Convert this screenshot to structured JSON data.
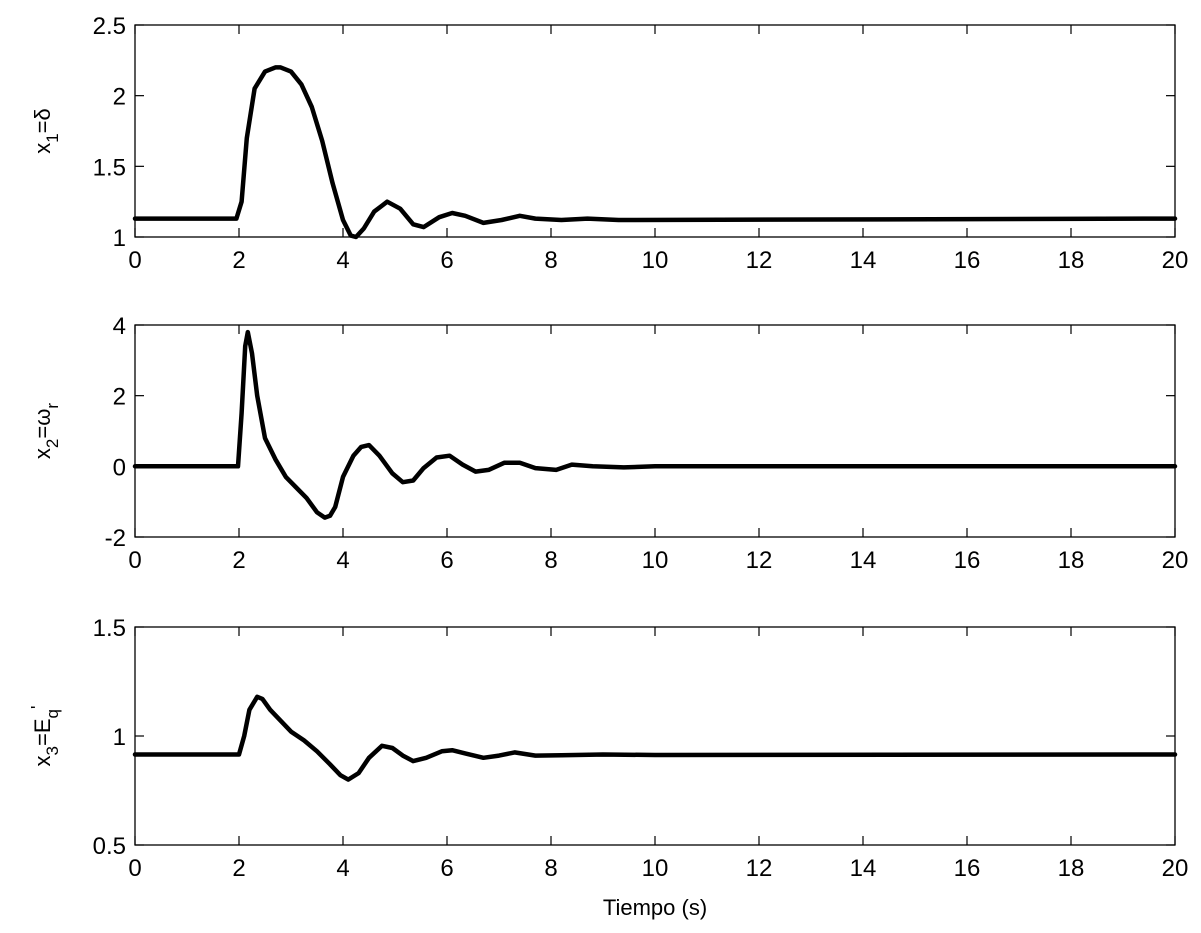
{
  "chart_data": [
    {
      "type": "line",
      "ylabel_parts": [
        "x",
        "1",
        "=δ"
      ],
      "xlabel": "",
      "xlim": [
        0,
        20
      ],
      "ylim": [
        1,
        2.5
      ],
      "xticks": [
        "0",
        "2",
        "4",
        "6",
        "8",
        "10",
        "12",
        "14",
        "16",
        "18",
        "20"
      ],
      "yticks": [
        "1",
        "1.5",
        "2",
        "2.5"
      ],
      "series": [
        {
          "x": [
            0,
            1.95,
            2.05,
            2.15,
            2.3,
            2.5,
            2.7,
            2.8,
            3.0,
            3.2,
            3.4,
            3.6,
            3.8,
            4.0,
            4.15,
            4.25,
            4.4,
            4.6,
            4.85,
            5.1,
            5.35,
            5.55,
            5.85,
            6.1,
            6.35,
            6.7,
            7.05,
            7.4,
            7.7,
            8.2,
            8.7,
            9.3,
            20
          ],
          "y": [
            1.13,
            1.13,
            1.25,
            1.7,
            2.05,
            2.17,
            2.2,
            2.2,
            2.17,
            2.08,
            1.92,
            1.68,
            1.38,
            1.12,
            1.01,
            1.0,
            1.06,
            1.18,
            1.25,
            1.2,
            1.09,
            1.07,
            1.14,
            1.17,
            1.15,
            1.1,
            1.12,
            1.15,
            1.13,
            1.12,
            1.13,
            1.12,
            1.13
          ]
        }
      ]
    },
    {
      "type": "line",
      "ylabel_parts": [
        "x",
        "2",
        "=ω",
        "r"
      ],
      "xlabel": "",
      "xlim": [
        0,
        20
      ],
      "ylim": [
        -2,
        4
      ],
      "xticks": [
        "0",
        "2",
        "4",
        "6",
        "8",
        "10",
        "12",
        "14",
        "16",
        "18",
        "20"
      ],
      "yticks": [
        "-2",
        "0",
        "2",
        "4"
      ],
      "series": [
        {
          "x": [
            0,
            1.98,
            2.05,
            2.12,
            2.17,
            2.25,
            2.35,
            2.5,
            2.7,
            2.9,
            3.1,
            3.3,
            3.5,
            3.65,
            3.75,
            3.85,
            4.0,
            4.2,
            4.35,
            4.5,
            4.7,
            4.95,
            5.15,
            5.35,
            5.55,
            5.8,
            6.05,
            6.3,
            6.55,
            6.8,
            7.1,
            7.4,
            7.7,
            8.1,
            8.4,
            8.8,
            9.4,
            10.0,
            20
          ],
          "y": [
            0,
            0,
            1.5,
            3.4,
            3.8,
            3.2,
            2.0,
            0.8,
            0.2,
            -0.3,
            -0.6,
            -0.9,
            -1.3,
            -1.45,
            -1.4,
            -1.15,
            -0.3,
            0.3,
            0.55,
            0.6,
            0.3,
            -0.2,
            -0.45,
            -0.4,
            -0.05,
            0.25,
            0.3,
            0.05,
            -0.15,
            -0.1,
            0.1,
            0.1,
            -0.05,
            -0.1,
            0.05,
            0.0,
            -0.03,
            0.0,
            0.0
          ]
        }
      ]
    },
    {
      "type": "line",
      "ylabel_parts": [
        "x",
        "3",
        "=E",
        "q",
        "'"
      ],
      "xlabel": "Tiempo (s)",
      "xlim": [
        0,
        20
      ],
      "ylim": [
        0.5,
        1.5
      ],
      "xticks": [
        "0",
        "2",
        "4",
        "6",
        "8",
        "10",
        "12",
        "14",
        "16",
        "18",
        "20"
      ],
      "yticks": [
        "0.5",
        "1",
        "1.5"
      ],
      "series": [
        {
          "x": [
            0,
            2.0,
            2.1,
            2.2,
            2.35,
            2.45,
            2.6,
            2.8,
            3.0,
            3.25,
            3.5,
            3.75,
            3.95,
            4.1,
            4.3,
            4.5,
            4.75,
            4.95,
            5.15,
            5.35,
            5.6,
            5.9,
            6.1,
            6.35,
            6.7,
            7.0,
            7.3,
            7.7,
            8.2,
            9.0,
            10.0,
            20
          ],
          "y": [
            0.915,
            0.915,
            1.0,
            1.12,
            1.18,
            1.17,
            1.12,
            1.07,
            1.02,
            0.98,
            0.93,
            0.87,
            0.82,
            0.8,
            0.83,
            0.9,
            0.955,
            0.945,
            0.91,
            0.885,
            0.9,
            0.93,
            0.935,
            0.92,
            0.9,
            0.91,
            0.925,
            0.91,
            0.912,
            0.915,
            0.913,
            0.915
          ]
        }
      ]
    }
  ]
}
